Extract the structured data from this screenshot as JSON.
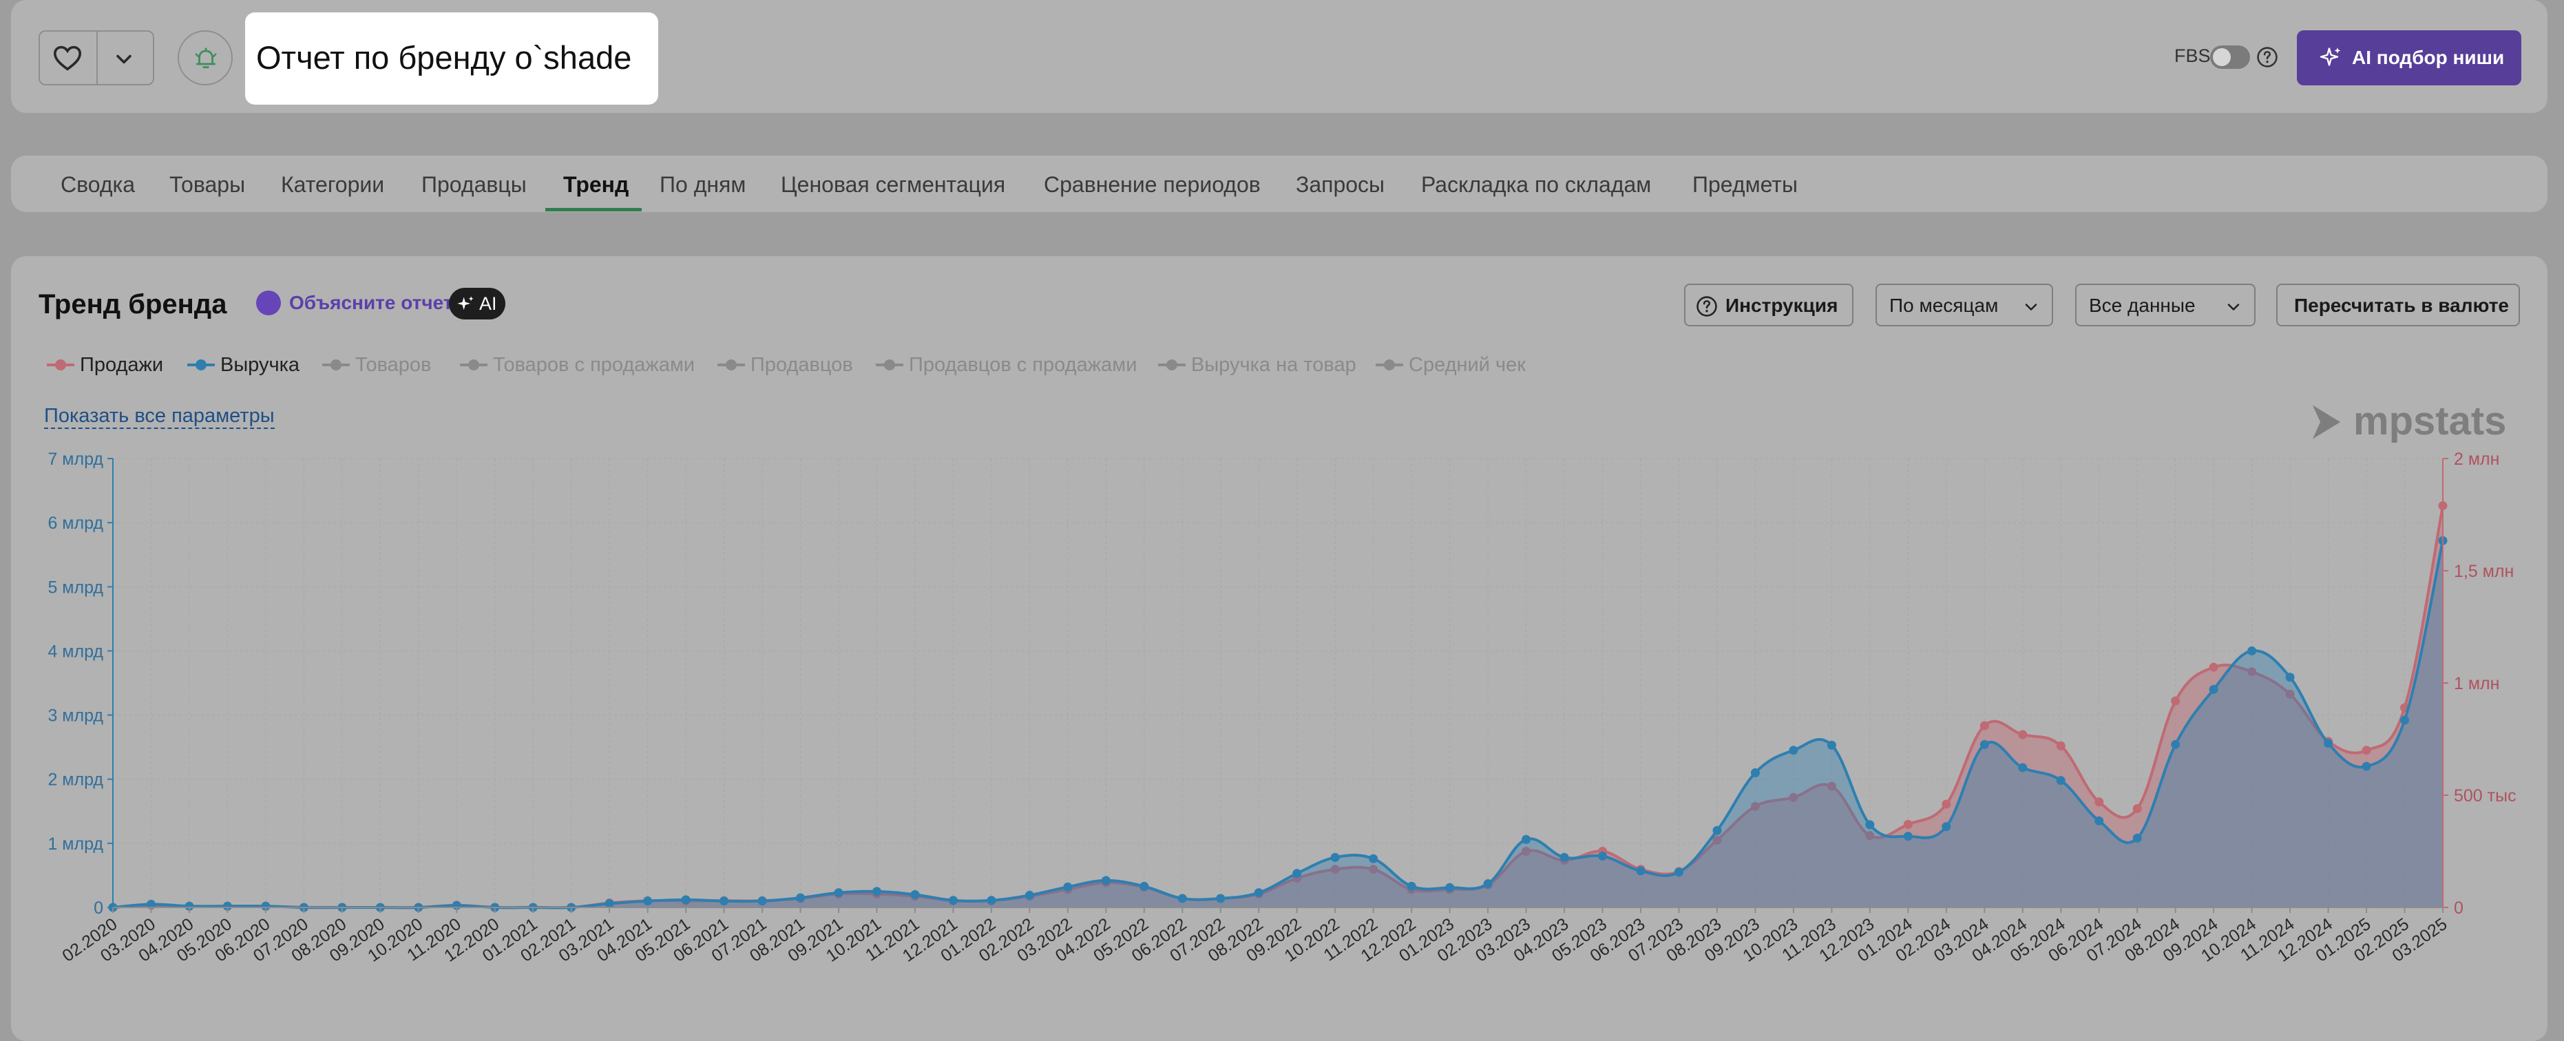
{
  "header": {
    "title": "Отчет по бренду o`shade",
    "fbs_label": "FBS",
    "ai_button_label": "AI подбор ниши"
  },
  "tabs": [
    {
      "label": "Сводка",
      "active": false
    },
    {
      "label": "Товары",
      "active": false
    },
    {
      "label": "Категории",
      "active": false
    },
    {
      "label": "Продавцы",
      "active": false
    },
    {
      "label": "Тренд",
      "active": true
    },
    {
      "label": "По дням",
      "active": false
    },
    {
      "label": "Ценовая сегментация",
      "active": false
    },
    {
      "label": "Сравнение периодов",
      "active": false
    },
    {
      "label": "Запросы",
      "active": false
    },
    {
      "label": "Раскладка по складам",
      "active": false
    },
    {
      "label": "Предметы",
      "active": false
    }
  ],
  "section": {
    "title": "Тренд бренда",
    "explain_label": "Объясните отчет",
    "ai_badge": "AI",
    "instruction_label": "Инструкция",
    "period_select": "По месяцам",
    "data_select": "Все данные",
    "currency_button": "Пересчитать в валюте",
    "show_all_label": "Показать все параметры",
    "logo_text": "mpstats"
  },
  "legend": [
    {
      "label": "Продажи",
      "active": true,
      "color": "#c06a74"
    },
    {
      "label": "Выручка",
      "active": true,
      "color": "#2e7fb0"
    },
    {
      "label": "Товаров",
      "active": false,
      "color": "#8a8a8a"
    },
    {
      "label": "Товаров с продажами",
      "active": false,
      "color": "#8a8a8a"
    },
    {
      "label": "Продавцов",
      "active": false,
      "color": "#8a8a8a"
    },
    {
      "label": "Продавцов с продажами",
      "active": false,
      "color": "#8a8a8a"
    },
    {
      "label": "Выручка на товар",
      "active": false,
      "color": "#8a8a8a"
    },
    {
      "label": "Средний чек",
      "active": false,
      "color": "#8a8a8a"
    }
  ],
  "colors": {
    "accent_purple": "#573e99",
    "active_tab_underline": "#2f7d4f",
    "sales": "#c06a74",
    "revenue": "#2e7fb0"
  },
  "chart_data": {
    "type": "area",
    "x": [
      "02.2020",
      "03.2020",
      "04.2020",
      "05.2020",
      "06.2020",
      "07.2020",
      "08.2020",
      "09.2020",
      "10.2020",
      "11.2020",
      "12.2020",
      "01.2021",
      "02.2021",
      "03.2021",
      "04.2021",
      "05.2021",
      "06.2021",
      "07.2021",
      "08.2021",
      "09.2021",
      "10.2021",
      "11.2021",
      "12.2021",
      "01.2022",
      "02.2022",
      "03.2022",
      "04.2022",
      "05.2022",
      "06.2022",
      "07.2022",
      "08.2022",
      "09.2022",
      "10.2022",
      "11.2022",
      "12.2022",
      "01.2023",
      "02.2023",
      "03.2023",
      "04.2023",
      "05.2023",
      "06.2023",
      "07.2023",
      "08.2023",
      "09.2023",
      "10.2023",
      "11.2023",
      "12.2023",
      "01.2024",
      "02.2024",
      "03.2024",
      "04.2024",
      "05.2024",
      "06.2024",
      "07.2024",
      "08.2024",
      "09.2024",
      "10.2024",
      "11.2024",
      "12.2024",
      "01.2025",
      "02.2025",
      "03.2025"
    ],
    "left_axis": {
      "ticks": [
        "0",
        "1 млрд",
        "2 млрд",
        "3 млрд",
        "4 млрд",
        "5 млрд",
        "6 млрд",
        "7 млрд"
      ],
      "min": 0,
      "max": 7000000000
    },
    "right_axis": {
      "ticks": [
        "0",
        "500 тыс",
        "1 млн",
        "1,5 млн",
        "2 млн"
      ],
      "min": 0,
      "max": 2000000
    },
    "series": [
      {
        "name": "Выручка",
        "axis": "left",
        "color": "#2e7fb0",
        "values": [
          0,
          50000000,
          20000000,
          20000000,
          20000000,
          0,
          0,
          0,
          0,
          30000000,
          0,
          0,
          0,
          60000000,
          100000000,
          120000000,
          100000000,
          100000000,
          150000000,
          230000000,
          250000000,
          200000000,
          110000000,
          110000000,
          190000000,
          320000000,
          420000000,
          330000000,
          140000000,
          140000000,
          230000000,
          530000000,
          780000000,
          760000000,
          330000000,
          310000000,
          370000000,
          1060000000,
          780000000,
          800000000,
          570000000,
          550000000,
          1200000000,
          2100000000,
          2450000000,
          2530000000,
          1290000000,
          1110000000,
          1260000000,
          2540000000,
          2180000000,
          1980000000,
          1350000000,
          1080000000,
          2540000000,
          3400000000,
          4000000000,
          3590000000,
          2560000000,
          2200000000,
          2920000000,
          5720000000
        ]
      },
      {
        "name": "Продажи",
        "axis": "right",
        "color": "#c06a74",
        "values": [
          0,
          10000,
          5000,
          5000,
          5000,
          0,
          0,
          0,
          0,
          10000,
          0,
          0,
          0,
          20000,
          30000,
          30000,
          30000,
          30000,
          40000,
          60000,
          60000,
          50000,
          30000,
          30000,
          50000,
          80000,
          110000,
          90000,
          40000,
          40000,
          60000,
          130000,
          170000,
          170000,
          80000,
          80000,
          100000,
          250000,
          210000,
          250000,
          170000,
          160000,
          300000,
          450000,
          490000,
          540000,
          320000,
          370000,
          460000,
          810000,
          770000,
          720000,
          470000,
          440000,
          920000,
          1070000,
          1050000,
          950000,
          740000,
          700000,
          890000,
          1790000
        ]
      }
    ]
  }
}
